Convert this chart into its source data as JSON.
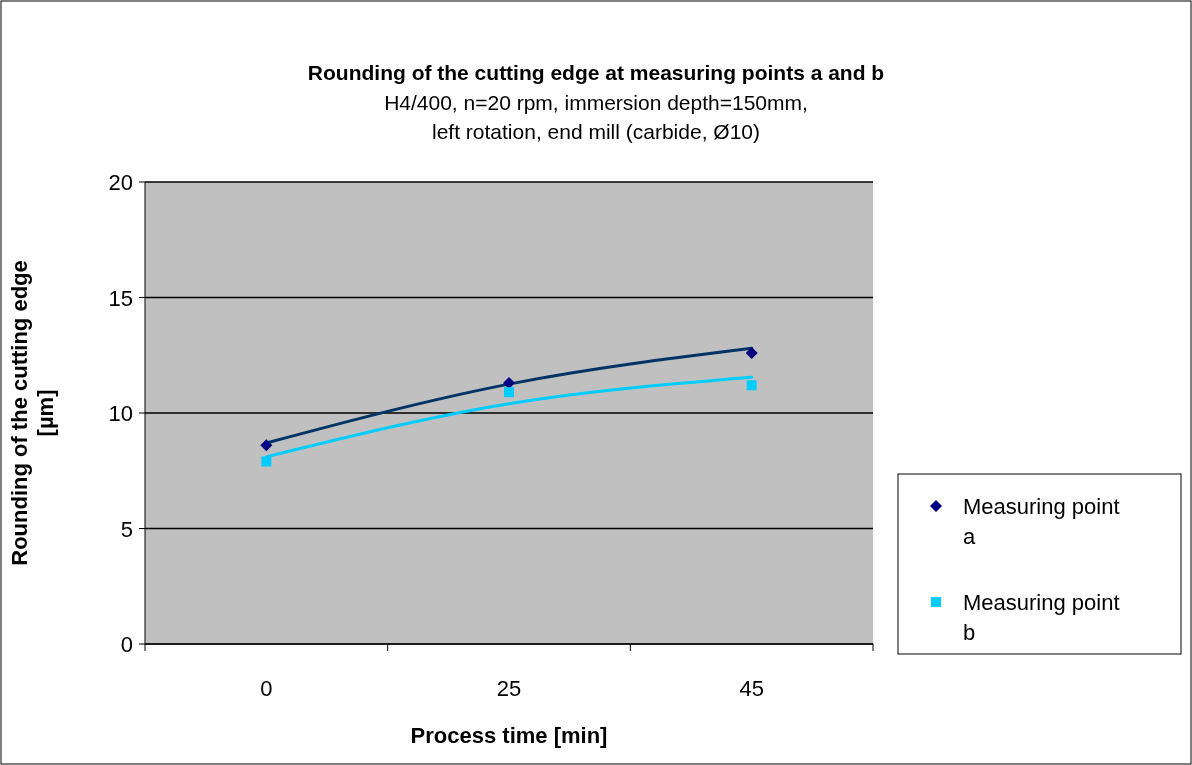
{
  "chart_data": {
    "type": "scatter",
    "title": "Rounding of the cutting edge at measuring points a and b",
    "subtitle": "H4/400, n=20 rpm, immersion depth=150mm,\nleft rotation, end mill (carbide, Ø10)",
    "xlabel": "Process time [min]",
    "ylabel": "Rounding of the cutting edge\n[µm]",
    "categories": [
      "0",
      "25",
      "45"
    ],
    "series": [
      {
        "name": "Measuring point a",
        "color": "#000080",
        "marker": "diamond",
        "values": [
          8.6,
          11.3,
          12.6
        ]
      },
      {
        "name": "Measuring point b",
        "color": "#00ccff",
        "marker": "square",
        "values": [
          7.9,
          10.9,
          11.2
        ]
      },
      {
        "type": "line",
        "color": "#003366",
        "x": [
          "0",
          "25",
          "45"
        ],
        "values": [
          8.7,
          11.25,
          12.8
        ]
      },
      {
        "type": "line",
        "color": "#00ccff",
        "x": [
          "0",
          "25",
          "45"
        ],
        "values": [
          8.1,
          10.4,
          11.55
        ]
      }
    ],
    "ylim": [
      0,
      20
    ],
    "yticks": [
      0,
      5,
      10,
      15,
      20
    ],
    "grid": "y",
    "legend": "right"
  }
}
